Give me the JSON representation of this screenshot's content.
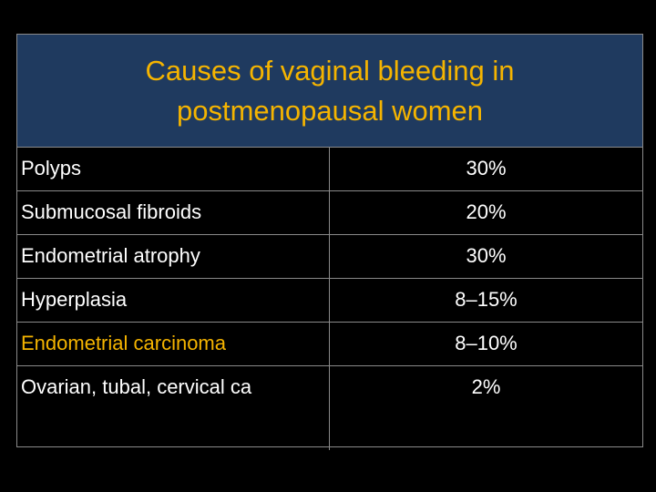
{
  "title": "Causes of vaginal bleeding in postmenopausal women",
  "colors": {
    "background": "#000000",
    "header_background": "#1f3a5f",
    "title_text": "#f5b400",
    "body_text": "#ffffff",
    "highlight_text": "#f5b400",
    "grid_lines": "#8a8a8a"
  },
  "rows": [
    {
      "cause": "Polyps",
      "percent": "30%"
    },
    {
      "cause": "Submucosal fibroids",
      "percent": "20%"
    },
    {
      "cause": "Endometrial atrophy",
      "percent": "30%"
    },
    {
      "cause": "Hyperplasia",
      "percent": "8–15%"
    },
    {
      "cause": "Endometrial carcinoma",
      "percent": "8–10%",
      "highlight": true
    },
    {
      "cause": "Ovarian, tubal, cervical ca",
      "percent": "2%"
    }
  ]
}
